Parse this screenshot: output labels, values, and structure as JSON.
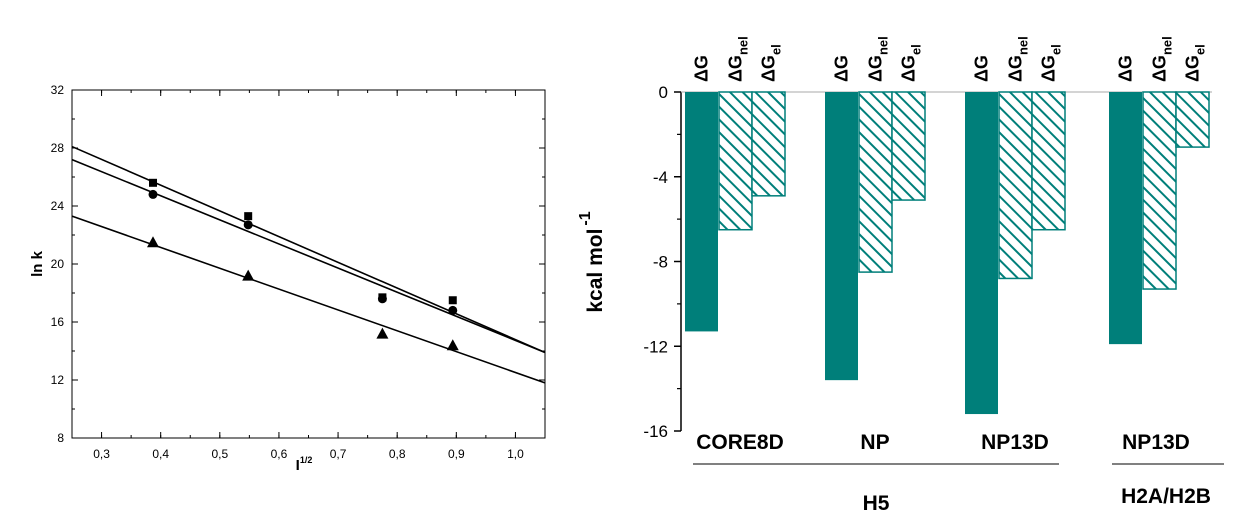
{
  "chart_data": [
    {
      "type": "scatter",
      "title": "",
      "xlabel_main": "I",
      "xlabel_sup": "1/2",
      "ylabel": "ln k",
      "xlim": [
        0.25,
        1.05
      ],
      "ylim": [
        8,
        32
      ],
      "xticks": [
        "0,3",
        "0,4",
        "0,5",
        "0,6",
        "0,7",
        "0,8",
        "0,9",
        "1,0"
      ],
      "yticks": [
        "8",
        "12",
        "16",
        "20",
        "24",
        "28",
        "32"
      ],
      "grid": false,
      "series": [
        {
          "marker": "square",
          "x": [
            0.387,
            0.548,
            0.775,
            0.894
          ],
          "y": [
            25.6,
            23.3,
            17.7,
            17.5
          ],
          "fit": [
            [
              0.25,
              28.1
            ],
            [
              1.05,
              13.9
            ]
          ]
        },
        {
          "marker": "circle",
          "x": [
            0.387,
            0.548,
            0.775,
            0.894
          ],
          "y": [
            24.8,
            22.7,
            17.6,
            16.8
          ],
          "fit": [
            [
              0.25,
              27.2
            ],
            [
              1.05,
              13.9
            ]
          ]
        },
        {
          "marker": "triangle",
          "x": [
            0.387,
            0.548,
            0.775,
            0.894
          ],
          "y": [
            21.5,
            19.2,
            15.2,
            14.4
          ],
          "fit": [
            [
              0.25,
              23.3
            ],
            [
              1.05,
              11.8
            ]
          ]
        }
      ]
    },
    {
      "type": "bar",
      "title": "",
      "ylabel_main": "kcal mol",
      "ylabel_sup": "-1",
      "ylim": [
        -16,
        0
      ],
      "yticks": [
        "0",
        "-4",
        "-8",
        "-12",
        "-16"
      ],
      "series_labels": [
        {
          "base": "ΔG",
          "sub": ""
        },
        {
          "base": "ΔG",
          "sub": "nel"
        },
        {
          "base": "ΔG",
          "sub": "el"
        }
      ],
      "groups": [
        {
          "label": "CORE8D",
          "values": [
            -11.3,
            -6.5,
            -4.9
          ]
        },
        {
          "label": "NP",
          "values": [
            -13.6,
            -8.5,
            -5.1
          ]
        },
        {
          "label": "NP13D",
          "values": [
            -15.2,
            -8.8,
            -6.5
          ]
        },
        {
          "label": "NP13D",
          "values": [
            -11.9,
            -9.3,
            -2.6
          ]
        }
      ],
      "super_groups": [
        {
          "label": "H5",
          "group_indices": [
            0,
            1,
            2
          ]
        },
        {
          "label": "H2A/H2B",
          "group_indices": [
            3
          ]
        }
      ],
      "colors": {
        "solid": "#007f7a",
        "hatch": "#007f7a"
      }
    }
  ]
}
